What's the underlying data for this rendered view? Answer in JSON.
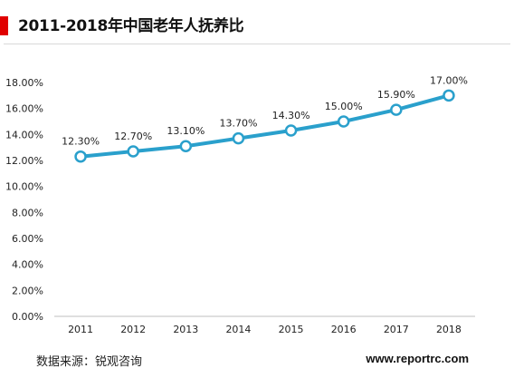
{
  "title": "2011-2018年中国老年人抚养比",
  "footer": {
    "source": "数据来源：锐观咨询",
    "website": "www.reportrc.com"
  },
  "colors": {
    "accent": "#e00000",
    "line": "#2aa0cc"
  },
  "chart_data": {
    "type": "line",
    "title": "2011-2018年中国老年人抚养比",
    "categories": [
      "2011",
      "2012",
      "2013",
      "2014",
      "2015",
      "2016",
      "2017",
      "2018"
    ],
    "series": [
      {
        "values": [
          12.3,
          12.7,
          13.1,
          13.7,
          14.3,
          15.0,
          15.9,
          17.0
        ],
        "labels": [
          "12.30%",
          "12.70%",
          "13.10%",
          "13.70%",
          "14.30%",
          "15.00%",
          "15.90%",
          "17.00%"
        ]
      }
    ],
    "ylim": [
      0,
      18
    ],
    "yticks": [
      0,
      2,
      4,
      6,
      8,
      10,
      12,
      14,
      16,
      18
    ],
    "ytick_labels": [
      "0.00%",
      "2.00%",
      "4.00%",
      "6.00%",
      "8.00%",
      "10.00%",
      "12.00%",
      "14.00%",
      "16.00%",
      "18.00%"
    ],
    "grid": false,
    "xlabel": "",
    "ylabel": ""
  }
}
